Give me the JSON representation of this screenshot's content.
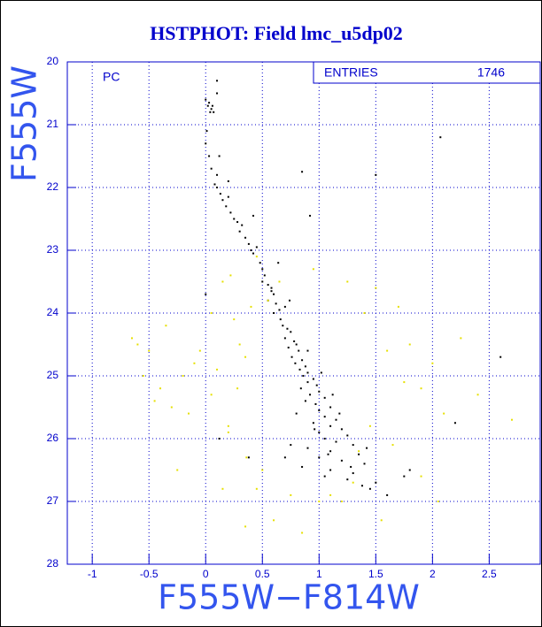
{
  "chart_data": {
    "type": "scatter",
    "title": "HSTPHOT: Field lmc_u5dp02",
    "x_label": "F555W−F814W",
    "y_label": "F555W",
    "annotation": "PC",
    "stats_label": "ENTRIES",
    "stats_value": "1746",
    "xlim": [
      -1.22,
      2.95
    ],
    "ylim": [
      20,
      28
    ],
    "y_inverted": true,
    "xticks": [
      -1,
      -0.5,
      0,
      0.5,
      1,
      1.5,
      2,
      2.5
    ],
    "yticks": [
      20,
      21,
      22,
      23,
      24,
      25,
      26,
      27,
      28
    ],
    "grid": true,
    "series": [
      {
        "color": "#000000",
        "x": [
          0.0,
          0.02,
          0.03,
          0.05,
          0.04,
          0.06,
          0.07,
          0.1,
          0.01,
          0.0,
          0.03,
          0.05,
          0.1,
          0.12,
          0.08,
          0.1,
          0.13,
          0.15,
          0.18,
          0.2,
          0.22,
          0.25,
          0.28,
          0.3,
          0.32,
          0.35,
          0.38,
          0.4,
          0.42,
          0.45,
          0.48,
          0.5,
          0.52,
          0.5,
          0.55,
          0.58,
          0.6,
          0.55,
          0.62,
          0.65,
          0.7,
          0.6,
          0.66,
          0.68,
          0.72,
          0.75,
          0.7,
          0.78,
          0.8,
          0.73,
          0.82,
          0.76,
          0.85,
          0.79,
          0.88,
          0.83,
          0.9,
          0.86,
          0.95,
          0.9,
          0.98,
          0.84,
          1.0,
          0.92,
          1.05,
          0.88,
          0.97,
          1.1,
          1.0,
          0.8,
          1.05,
          1.15,
          0.95,
          1.1,
          1.2,
          1.0,
          1.25,
          1.05,
          1.15,
          1.3,
          0.9,
          1.1,
          1.35,
          1.0,
          1.2,
          1.4,
          0.85,
          1.1,
          1.3,
          1.05,
          1.5,
          1.25,
          0.7,
          0.75,
          1.45,
          1.75,
          2.07,
          1.5,
          0.85,
          0.92,
          2.6,
          2.2,
          1.8,
          0.12,
          0.38,
          0.0,
          0.1,
          0.2,
          0.42,
          0.64,
          0.74,
          0.58,
          0.9,
          1.02,
          1.12,
          1.18,
          0.96,
          1.08,
          1.28,
          1.38,
          1.42,
          1.6
        ],
        "y": [
          20.6,
          20.7,
          20.65,
          20.75,
          20.8,
          20.7,
          20.8,
          20.3,
          21.1,
          21.3,
          21.5,
          21.7,
          21.8,
          21.5,
          21.95,
          22.0,
          22.1,
          22.2,
          22.3,
          22.15,
          22.4,
          22.5,
          22.55,
          22.7,
          22.6,
          22.8,
          22.9,
          23.0,
          23.05,
          22.95,
          23.2,
          23.3,
          23.4,
          23.5,
          23.55,
          23.6,
          23.7,
          23.8,
          23.85,
          23.95,
          23.9,
          24.0,
          24.1,
          24.2,
          24.25,
          24.3,
          24.4,
          24.45,
          24.5,
          24.55,
          24.6,
          24.7,
          24.75,
          24.8,
          24.85,
          24.9,
          24.95,
          25.0,
          25.05,
          25.1,
          25.15,
          25.2,
          25.25,
          25.3,
          25.35,
          25.4,
          25.45,
          25.5,
          25.55,
          25.6,
          25.65,
          25.7,
          25.75,
          25.8,
          25.85,
          25.9,
          25.95,
          26.0,
          26.05,
          26.1,
          26.15,
          26.2,
          26.25,
          26.3,
          26.35,
          26.4,
          26.45,
          26.5,
          26.55,
          26.6,
          26.7,
          26.65,
          26.3,
          26.1,
          26.8,
          26.6,
          21.2,
          21.8,
          21.75,
          22.45,
          24.7,
          25.75,
          26.5,
          26.0,
          26.3,
          23.7,
          20.5,
          21.9,
          22.45,
          23.2,
          23.8,
          23.65,
          24.6,
          24.95,
          25.3,
          25.6,
          25.85,
          26.25,
          26.45,
          26.75,
          26.15,
          26.9
        ]
      },
      {
        "color": "#e6e000",
        "x": [
          -0.65,
          -0.6,
          -0.55,
          -0.5,
          -0.45,
          -0.4,
          -0.35,
          -0.3,
          -0.2,
          -0.15,
          -0.1,
          -0.05,
          0.05,
          0.1,
          0.15,
          0.2,
          0.25,
          0.3,
          0.35,
          0.4,
          0.15,
          0.22,
          0.28,
          0.36,
          0.45,
          0.6,
          0.75,
          0.85,
          1.0,
          1.1,
          1.2,
          1.3,
          1.4,
          1.5,
          1.6,
          1.7,
          1.8,
          1.9,
          2.0,
          2.1,
          2.25,
          2.4,
          2.7,
          1.65,
          1.45,
          1.25,
          0.95,
          0.55,
          0.35,
          -0.25,
          0.05,
          0.5,
          1.9,
          2.05,
          1.55,
          1.35,
          0.65,
          0.45,
          0.2,
          1.75
        ],
        "y": [
          24.4,
          24.5,
          25.0,
          24.6,
          25.4,
          25.2,
          24.2,
          25.5,
          25.0,
          25.6,
          24.8,
          24.6,
          25.3,
          24.9,
          26.8,
          25.8,
          24.1,
          24.5,
          24.7,
          23.9,
          23.5,
          23.4,
          25.2,
          26.3,
          26.8,
          27.3,
          26.9,
          27.5,
          27.0,
          26.9,
          27.0,
          26.7,
          24.0,
          23.6,
          24.6,
          23.9,
          24.5,
          25.2,
          24.8,
          25.6,
          24.4,
          25.3,
          25.7,
          26.1,
          25.8,
          23.5,
          23.3,
          23.8,
          27.4,
          26.5,
          24.0,
          26.5,
          26.6,
          27.0,
          27.3,
          26.2,
          23.5,
          23.1,
          25.9,
          25.1
        ]
      }
    ]
  }
}
